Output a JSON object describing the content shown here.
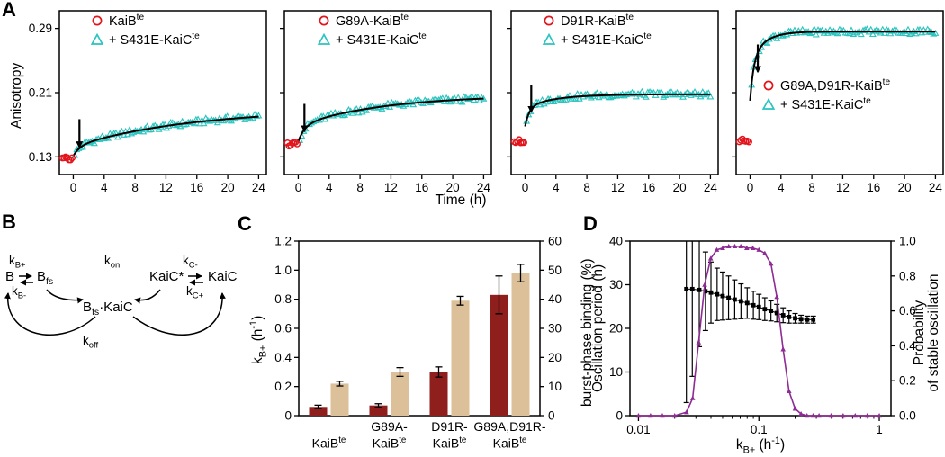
{
  "colors": {
    "red": "#e2141c",
    "cyan": "#2bc4bf",
    "maroon": "#8e1f1c",
    "tan": "#dcc09a",
    "purple": "#8f2b94"
  },
  "panel_a": {
    "label": "A",
    "ylabel": "Anisotropy",
    "xlabel": "Time (h)",
    "yticks": [
      "0.13",
      "0.21",
      "0.29"
    ],
    "xticks": [
      "0",
      "4",
      "8",
      "12",
      "16",
      "20",
      "24"
    ],
    "subplots": [
      {
        "legend": [
          {
            "marker": "circle",
            "color": "#e2141c",
            "label": "KaiB^{te}"
          },
          {
            "marker": "triangle",
            "color": "#2bc4bf",
            "label": "+ S431E-KaiC^{te}"
          }
        ]
      },
      {
        "legend": [
          {
            "marker": "circle",
            "color": "#e2141c",
            "label": "G89A-KaiB^{te}"
          },
          {
            "marker": "triangle",
            "color": "#2bc4bf",
            "label": "+ S431E-KaiC^{te}"
          }
        ]
      },
      {
        "legend": [
          {
            "marker": "circle",
            "color": "#e2141c",
            "label": "D91R-KaiB^{te}"
          },
          {
            "marker": "triangle",
            "color": "#2bc4bf",
            "label": "+ S431E-KaiC^{te}"
          }
        ]
      },
      {
        "legend": [
          {
            "marker": "circle",
            "color": "#e2141c",
            "label": "G89A,D91R-KaiB^{te}"
          },
          {
            "marker": "triangle",
            "color": "#2bc4bf",
            "label": "+ S431E-KaiC^{te}"
          }
        ]
      }
    ]
  },
  "panel_b": {
    "label": "B",
    "species": {
      "b": "B",
      "bfs": "B_{fs}",
      "kaic_star": "KaiC*",
      "kaic": "KaiC",
      "complex": "B_{fs}·KaiC"
    },
    "rates": {
      "kb_plus": "k_{B+}",
      "kb_minus": "k_{B-}",
      "k_on": "k_{on}",
      "kc_minus": "k_{C-}",
      "kc_plus": "k_{C+}",
      "k_off": "k_{off}"
    }
  },
  "panel_c": {
    "label": "C",
    "left_label": "k_{B+} (h^{-1})",
    "right_label": "burst-phase binding (%)"
  },
  "panel_d": {
    "label": "D",
    "left_label": "Oscillation period (h)",
    "right_label_line1": "Probability",
    "right_label_line2": "of stable oscillation",
    "xlabel": "k_{B+} (h^{-1})"
  },
  "chart_data": [
    {
      "id": "A1",
      "type": "scatter",
      "xlabel": "Time (h)",
      "ylabel": "Anisotropy",
      "xlim": [
        -1.8,
        25
      ],
      "ylim": [
        0.108,
        0.312
      ],
      "red_series": {
        "label": "KaiB^{te}",
        "n": 7,
        "t_start": -1.4,
        "t_end": -0.15,
        "anisotropy": 0.1275
      },
      "cyan_series": {
        "label": "+ S431E-KaiC^{te}",
        "n": 95,
        "t_start": 0.2,
        "t_end": 24,
        "noise": 0.0035
      },
      "fit": {
        "plateau": 0.19,
        "a1": 0.012,
        "k1": 1.2,
        "a2": 0.047,
        "k2": 0.065
      },
      "arrow": {
        "t": 0.8,
        "tip": 0.142,
        "tail": 0.177
      }
    },
    {
      "id": "A2",
      "type": "scatter",
      "xlabel": "Time (h)",
      "ylabel": "Anisotropy",
      "xlim": [
        -1.8,
        25
      ],
      "ylim": [
        0.108,
        0.312
      ],
      "red_series": {
        "label": "G89A-KaiB^{te}",
        "n": 7,
        "t_start": -1.4,
        "t_end": -0.15,
        "anisotropy": 0.146
      },
      "cyan_series": {
        "label": "+ S431E-KaiC^{te}",
        "n": 95,
        "t_start": 0.2,
        "t_end": 24,
        "noise": 0.0035
      },
      "fit": {
        "plateau": 0.207,
        "a1": 0.02,
        "k1": 1.2,
        "a2": 0.038,
        "k2": 0.09
      },
      "arrow": {
        "t": 0.8,
        "tip": 0.162,
        "tail": 0.196
      }
    },
    {
      "id": "A3",
      "type": "scatter",
      "xlabel": "Time (h)",
      "ylabel": "Anisotropy",
      "xlim": [
        -1.8,
        25
      ],
      "ylim": [
        0.108,
        0.312
      ],
      "red_series": {
        "label": "D91R-KaiB^{te}",
        "n": 7,
        "t_start": -1.4,
        "t_end": -0.15,
        "anisotropy": 0.149
      },
      "cyan_series": {
        "label": "+ S431E-KaiC^{te}",
        "n": 95,
        "t_start": 0.2,
        "t_end": 24,
        "noise": 0.0035
      },
      "fit": {
        "plateau": 0.208,
        "a1": 0.024,
        "k1": 1.8,
        "a2": 0.016,
        "k2": 0.25
      },
      "arrow": {
        "t": 0.8,
        "tip": 0.186,
        "tail": 0.22
      }
    },
    {
      "id": "A4",
      "type": "scatter",
      "xlabel": "Time (h)",
      "ylabel": "Anisotropy",
      "xlim": [
        -1.8,
        25
      ],
      "ylim": [
        0.108,
        0.312
      ],
      "red_series": {
        "label": "G89A,D91R-KaiB^{te}",
        "n": 7,
        "t_start": -1.4,
        "t_end": -0.15,
        "anisotropy": 0.15
      },
      "cyan_series": {
        "label": "+ S431E-KaiC^{te}",
        "n": 95,
        "t_start": 0.2,
        "t_end": 24,
        "noise": 0.0035
      },
      "fit": {
        "plateau": 0.286,
        "a1": 0.05,
        "k1": 2.2,
        "a2": 0.036,
        "k2": 0.55
      },
      "arrow": {
        "t": 1.0,
        "tip": 0.236,
        "tail": 0.27
      }
    },
    {
      "id": "C",
      "type": "bar",
      "categories": [
        [
          "",
          "KaiB^{te}"
        ],
        [
          "G89A-",
          "KaiB^{te}"
        ],
        [
          "D91R-",
          "KaiB^{te}"
        ],
        [
          "G89A,D91R-",
          "KaiB^{te}"
        ]
      ],
      "left_axis": {
        "lim": [
          0,
          1.2
        ],
        "ticks": [
          "0",
          "0.2",
          "0.4",
          "0.6",
          "0.8",
          "1.0",
          "1.2"
        ],
        "label": "k_{B+} (h^{-1})"
      },
      "right_axis": {
        "lim": [
          0,
          60
        ],
        "ticks": [
          "0",
          "10",
          "20",
          "30",
          "40",
          "50",
          "60"
        ],
        "label": "burst-phase binding (%)"
      },
      "series": [
        {
          "name": "k_{B+} (h^{-1})",
          "axis": "left",
          "color": "#8e1f1c",
          "values": [
            0.06,
            0.07,
            0.3,
            0.83
          ],
          "errors": [
            0.012,
            0.012,
            0.035,
            0.13
          ]
        },
        {
          "name": "burst-phase binding (%)",
          "axis": "right",
          "color": "#dcc09a",
          "values": [
            11,
            15,
            39.5,
            49
          ],
          "errors": [
            0.8,
            1.5,
            1.5,
            3.0
          ]
        }
      ]
    },
    {
      "id": "D",
      "type": "line",
      "x_axis": {
        "scale": "log",
        "lim": [
          0.0085,
          1.25
        ],
        "major_ticks": [
          "0.01",
          "0.1",
          "1"
        ],
        "label": "k_{B+} (h^{-1})"
      },
      "left_axis": {
        "lim": [
          0,
          40
        ],
        "ticks": [
          "0",
          "10",
          "20",
          "30",
          "40"
        ],
        "label": "Oscillation period (h)"
      },
      "right_axis": {
        "lim": [
          0,
          1
        ],
        "ticks": [
          "0.0",
          "0.2",
          "0.4",
          "0.6",
          "0.8",
          "1.0"
        ],
        "label": "Probability of stable oscillation"
      },
      "series": [
        {
          "name": "Oscillation period (h)",
          "axis": "left",
          "color": "#000000",
          "marker": "square",
          "x": [
            0.025,
            0.028,
            0.032,
            0.036,
            0.04,
            0.045,
            0.05,
            0.056,
            0.063,
            0.071,
            0.08,
            0.09,
            0.1,
            0.112,
            0.126,
            0.141,
            0.159,
            0.178,
            0.2,
            0.224,
            0.252,
            0.283
          ],
          "y": [
            29,
            29,
            28.8,
            28.5,
            28.2,
            27.8,
            27.4,
            27,
            26.6,
            26.2,
            25.8,
            25.3,
            24.9,
            24.4,
            24,
            23.5,
            23,
            22.6,
            22.3,
            22.1,
            22,
            22
          ],
          "yerr": [
            26,
            20,
            13,
            9,
            7,
            6,
            5.5,
            5,
            4.5,
            4,
            3.5,
            3.2,
            2.9,
            2.6,
            2.3,
            2,
            1.7,
            1.4,
            1.1,
            0.9,
            0.8,
            0.8
          ]
        },
        {
          "name": "Probability of stable oscillation",
          "axis": "right",
          "color": "#8f2b94",
          "marker": "triangle",
          "x": [
            0.01,
            0.0126,
            0.0158,
            0.02,
            0.0251,
            0.0282,
            0.0316,
            0.0355,
            0.0398,
            0.0447,
            0.0501,
            0.0562,
            0.0631,
            0.0708,
            0.0794,
            0.0891,
            0.1,
            0.112,
            0.126,
            0.141,
            0.159,
            0.178,
            0.2,
            0.224,
            0.251,
            0.282,
            0.316,
            0.398,
            0.501,
            0.631,
            0.794,
            1.0
          ],
          "y": [
            0,
            0,
            0,
            0,
            0.02,
            0.1,
            0.42,
            0.75,
            0.9,
            0.95,
            0.96,
            0.97,
            0.97,
            0.97,
            0.96,
            0.96,
            0.95,
            0.93,
            0.87,
            0.68,
            0.38,
            0.14,
            0.04,
            0.01,
            0,
            0,
            0,
            0,
            0,
            0,
            0,
            0
          ]
        }
      ]
    }
  ]
}
